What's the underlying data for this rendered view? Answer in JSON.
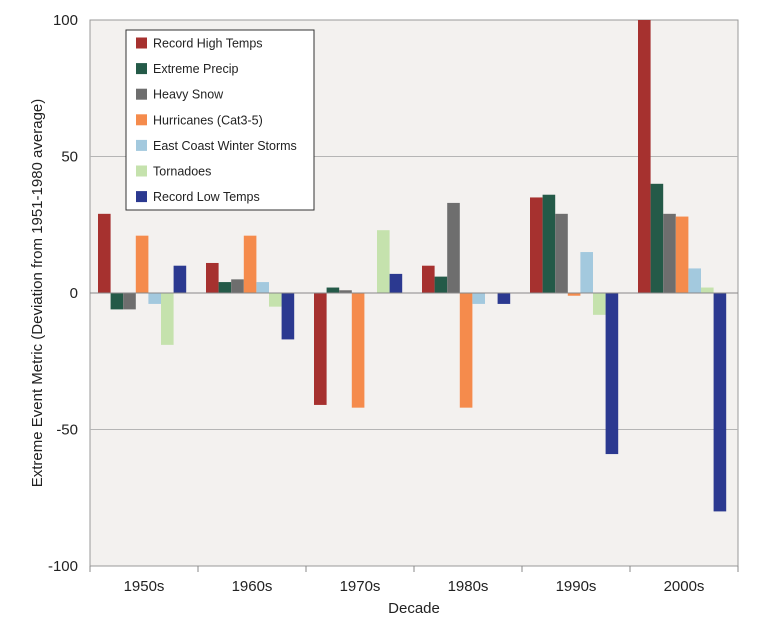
{
  "chart_data": {
    "type": "bar",
    "title": "",
    "xlabel": "Decade",
    "ylabel": "Extreme Event Metric (Deviation from 1951-1980 average)",
    "ylim": [
      -100,
      100
    ],
    "yticks": [
      -100,
      -50,
      0,
      50,
      100
    ],
    "grid": true,
    "legend_position": "top-left",
    "categories": [
      "1950s",
      "1960s",
      "1970s",
      "1980s",
      "1990s",
      "2000s"
    ],
    "series": [
      {
        "name": "Record High Temps",
        "color": "#a6312f",
        "values": [
          29,
          11,
          -41,
          10,
          35,
          100
        ]
      },
      {
        "name": "Extreme Precip",
        "color": "#245a48",
        "values": [
          -6,
          4,
          2,
          6,
          36,
          40
        ]
      },
      {
        "name": "Heavy Snow",
        "color": "#6e6e6e",
        "values": [
          -6,
          5,
          1,
          33,
          29,
          29
        ]
      },
      {
        "name": "Hurricanes (Cat3-5)",
        "color": "#f58b4c",
        "values": [
          21,
          21,
          -42,
          -42,
          -1,
          28
        ]
      },
      {
        "name": "East Coast Winter Storms",
        "color": "#a3c9de",
        "values": [
          -4,
          4,
          0,
          -4,
          15,
          9
        ]
      },
      {
        "name": "Tornadoes",
        "color": "#c5e2ad",
        "values": [
          -19,
          -5,
          23,
          0,
          -8,
          2
        ]
      },
      {
        "name": "Record Low Temps",
        "color": "#2b3990",
        "values": [
          10,
          -17,
          7,
          -4,
          -59,
          -80
        ]
      }
    ]
  }
}
